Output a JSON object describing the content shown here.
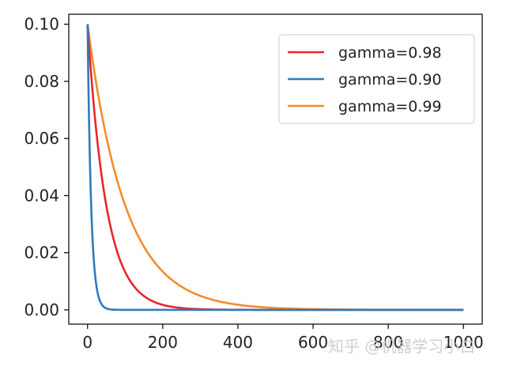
{
  "chart_data": {
    "type": "line",
    "title": "",
    "xlabel": "",
    "ylabel": "",
    "xlim": [
      -50,
      1050
    ],
    "ylim": [
      -0.005,
      0.1035
    ],
    "xticks": [
      "0",
      "200",
      "400",
      "600",
      "800",
      "1000"
    ],
    "yticks": [
      "0.00",
      "0.02",
      "0.04",
      "0.06",
      "0.08",
      "0.10"
    ],
    "grid": false,
    "legend_position": "top-right",
    "series": [
      {
        "name": "gamma=0.98",
        "color": "#e8262d",
        "formula": "0.1*0.98^x",
        "x_range": [
          0,
          1000
        ]
      },
      {
        "name": "gamma=0.90",
        "color": "#2f7bb8",
        "formula": "0.1*0.90^x",
        "x_range": [
          0,
          1000
        ]
      },
      {
        "name": "gamma=0.99",
        "color": "#f28d2b",
        "formula": "0.1*0.99^x",
        "x_range": [
          0,
          1000
        ]
      }
    ]
  },
  "watermark": "知乎 @机器学习小白"
}
